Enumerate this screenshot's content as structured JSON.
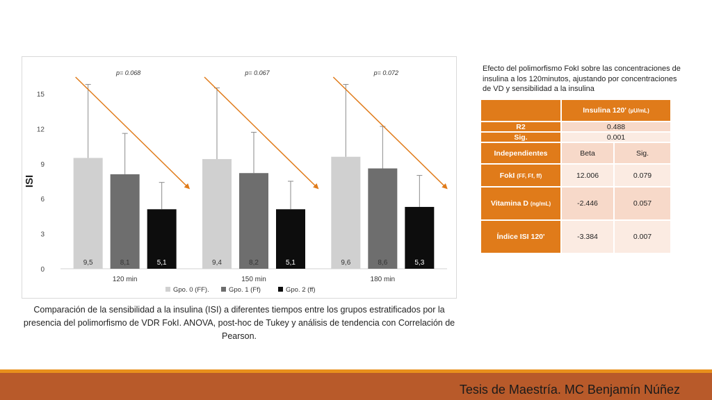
{
  "chart_data": {
    "type": "bar",
    "categories": [
      "120 min",
      "150 min",
      "180 min"
    ],
    "series": [
      {
        "name": "Gpo. 0 (FF).",
        "color": "#d0d0d0",
        "values": [
          9.5,
          9.4,
          9.6
        ],
        "labels": [
          "9,5",
          "9,4",
          "9,6"
        ],
        "error_upper": [
          15.8,
          15.5,
          15.8
        ]
      },
      {
        "name": "Gpo. 1 (Ff)",
        "color": "#6e6e6e",
        "values": [
          8.1,
          8.2,
          8.6
        ],
        "labels": [
          "8,1",
          "8,2",
          "8,6"
        ],
        "error_upper": [
          11.6,
          11.7,
          12.2
        ]
      },
      {
        "name": "Gpo. 2 (ff)",
        "color": "#0d0d0d",
        "values": [
          5.1,
          5.1,
          5.3
        ],
        "labels": [
          "5,1",
          "5,1",
          "5,3"
        ],
        "error_upper": [
          7.4,
          7.5,
          8.0
        ]
      }
    ],
    "ylabel": "ISI",
    "ylim": [
      0,
      15
    ],
    "yticks": [
      "0",
      "3",
      "6",
      "9",
      "12",
      "15"
    ],
    "pvalues": [
      "p= 0.068",
      "p= 0.067",
      "p= 0.072"
    ],
    "trend_color": "#e07b1a",
    "legend_position": "bottom"
  },
  "caption": "Comparación de la sensibilidad a la insulina (ISI) a diferentes tiempos entre los grupos estratificados por la presencia del polimorfismo de VDR FokI. ANOVA, post-hoc de Tukey y análisis de tendencia con Correlación de Pearson.",
  "side_panel": {
    "title": "Efecto del polimorfismo FokI sobre las concentraciones de insulina a los 120minutos, ajustando por concentraciones de VD y sensibilidad a la insulina",
    "table": {
      "header_main": "Insulina 120'",
      "header_unit": "(µU/mL)",
      "r2_label": "R2",
      "r2_value": "0.488",
      "sig_label": "Sig.",
      "sig_value": "0.001",
      "col_independientes": "Independientes",
      "col_beta": "Beta",
      "col_sig": "Sig.",
      "rows": [
        {
          "name": "FokI",
          "unit": "(FF, Ff, ff)",
          "beta": "12.006",
          "sig": "0.079"
        },
        {
          "name": "Vitamina D",
          "unit": "(ng/mL)",
          "beta": "-2.446",
          "sig": "0.057"
        },
        {
          "name": "Índice ISI 120'",
          "unit": "",
          "beta": "-3.384",
          "sig": "0.007"
        }
      ]
    }
  },
  "footer": {
    "text": "Tesis de Maestría. MC Benjamín Núñez"
  },
  "colors": {
    "accent": "#e07b1a",
    "footer_bar": "#b85a2a",
    "footer_line": "#e8901c"
  }
}
